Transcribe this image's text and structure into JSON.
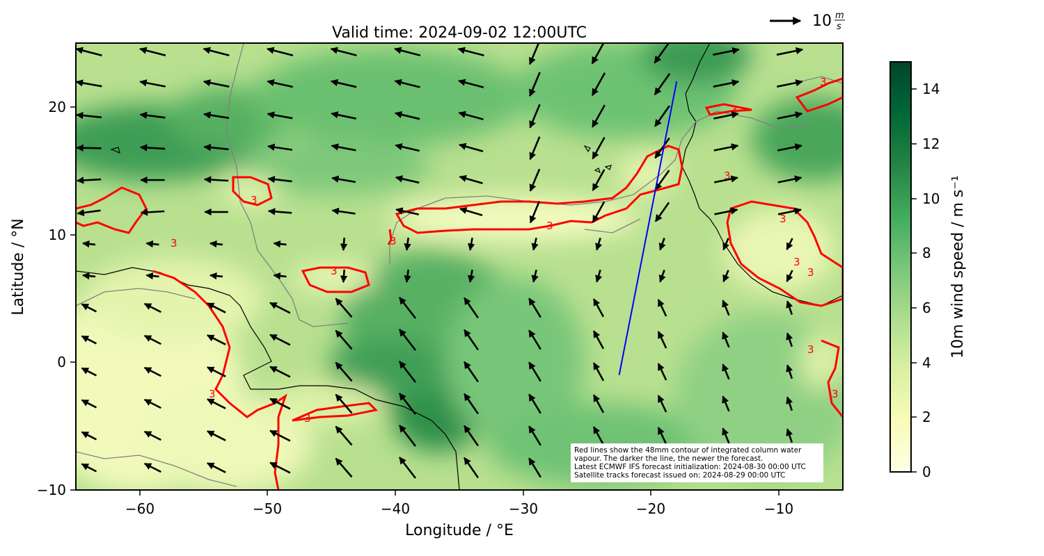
{
  "title": "Valid time: 2024-09-02 12:00UTC",
  "xlabel": "Longitude / °E",
  "ylabel": "Latitude / °N",
  "x_ticks": [
    "−60",
    "−50",
    "−40",
    "−30",
    "−20",
    "−10"
  ],
  "y_ticks": [
    "20",
    "10",
    "0",
    "−10"
  ],
  "x_range": [
    -65,
    -5
  ],
  "y_range": [
    -10,
    25
  ],
  "colorbar": {
    "label": "10m wind speed / m s⁻¹",
    "ticks": [
      "0",
      "2",
      "4",
      "6",
      "8",
      "10",
      "12",
      "14"
    ],
    "range": [
      0,
      15
    ],
    "colormap": "YlGn",
    "colors": [
      "#ffffe5",
      "#f7fcb9",
      "#d9f0a3",
      "#addd8e",
      "#78c679",
      "#41ab5d",
      "#238443",
      "#006837",
      "#004529"
    ]
  },
  "reference_vector": {
    "value": "10",
    "unit": "m/s"
  },
  "contour_label": "3",
  "contour_color": "#ff0000",
  "track_color": "#0000ff",
  "annotation_lines": [
    "Red lines show the 48mm contour of integrated column water",
    "vapour. The darker the line, the newer the forecast.",
    "Latest ECMWF IFS forecast initialization: 2024-08-30 00:00 UTC",
    "Satellite tracks forecast issued on: 2024-08-29 00:00 UTC"
  ],
  "satellite_track": [
    [
      -22.5,
      -1.0
    ],
    [
      -18.0,
      22.0
    ]
  ]
}
